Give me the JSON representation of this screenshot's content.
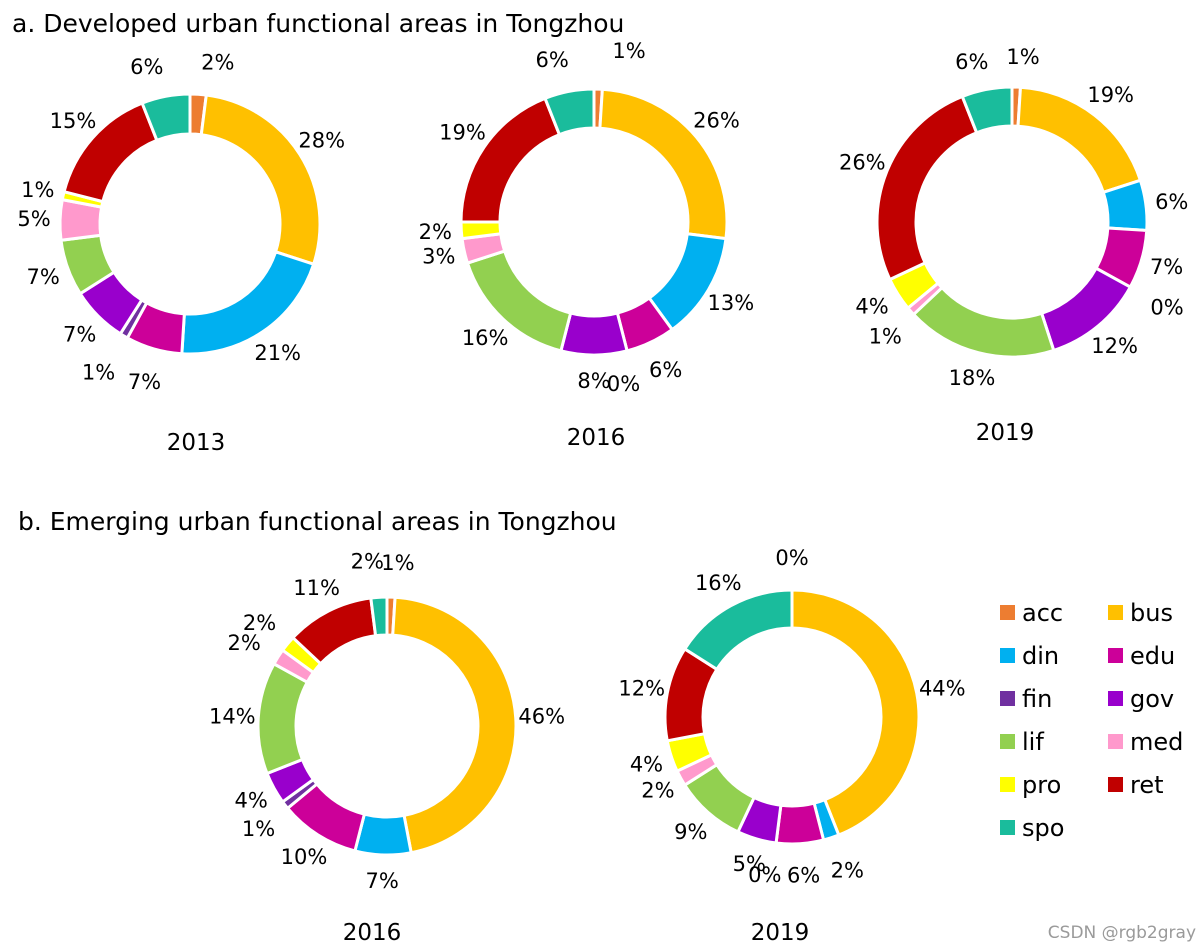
{
  "section_a": {
    "title": "a. Developed urban functional areas in Tongzhou"
  },
  "section_b": {
    "title": "b. Emerging urban functional areas in Tongzhou"
  },
  "watermark": "CSDN @rgb2gray",
  "colors": {
    "acc": "#ED7D31",
    "bus": "#FFC000",
    "din": "#00B0F0",
    "edu": "#CC0099",
    "fin": "#7030A0",
    "gov": "#9900CC",
    "lif": "#92D050",
    "med": "#FF99CC",
    "pro": "#FFFF00",
    "ret": "#C00000",
    "spo": "#1ABC9C"
  },
  "chart_data": [
    {
      "type": "pie",
      "style": "donut",
      "section": "a",
      "title": "2013",
      "categories": [
        "acc",
        "bus",
        "din",
        "edu",
        "fin",
        "gov",
        "lif",
        "med",
        "pro",
        "ret",
        "spo"
      ],
      "values": [
        2,
        28,
        21,
        7,
        1,
        7,
        7,
        5,
        1,
        15,
        6
      ],
      "labels": [
        "2%",
        "28%",
        "21%",
        "7%",
        "1%",
        "7%",
        "7%",
        "5%",
        "1%",
        "15%",
        "6%"
      ]
    },
    {
      "type": "pie",
      "style": "donut",
      "section": "a",
      "title": "2016",
      "categories": [
        "acc",
        "bus",
        "din",
        "edu",
        "fin",
        "gov",
        "lif",
        "med",
        "pro",
        "ret",
        "spo"
      ],
      "values": [
        1,
        26,
        13,
        6,
        0,
        8,
        16,
        3,
        2,
        19,
        6
      ],
      "labels": [
        "1%",
        "26%",
        "13%",
        "6%",
        "0%",
        "8%",
        "16%",
        "3%",
        "2%",
        "19%",
        "6%"
      ]
    },
    {
      "type": "pie",
      "style": "donut",
      "section": "a",
      "title": "2019",
      "categories": [
        "acc",
        "bus",
        "din",
        "edu",
        "fin",
        "gov",
        "lif",
        "med",
        "pro",
        "ret",
        "spo"
      ],
      "values": [
        1,
        19,
        6,
        7,
        0,
        12,
        18,
        1,
        4,
        26,
        6
      ],
      "labels": [
        "1%",
        "19%",
        "6%",
        "7%",
        "0%",
        "12%",
        "18%",
        "1%",
        "4%",
        "26%",
        "6%"
      ]
    },
    {
      "type": "pie",
      "style": "donut",
      "section": "b",
      "title": "2016",
      "categories": [
        "acc",
        "bus",
        "din",
        "edu",
        "fin",
        "gov",
        "lif",
        "med",
        "pro",
        "ret",
        "spo"
      ],
      "values": [
        1,
        46,
        7,
        10,
        1,
        4,
        14,
        2,
        2,
        11,
        2
      ],
      "labels": [
        "1%",
        "46%",
        "7%",
        "10%",
        "1%",
        "4%",
        "14%",
        "2%",
        "2%",
        "11%",
        "2%"
      ]
    },
    {
      "type": "pie",
      "style": "donut",
      "section": "b",
      "title": "2019",
      "categories": [
        "acc",
        "bus",
        "din",
        "edu",
        "fin",
        "gov",
        "lif",
        "med",
        "pro",
        "ret",
        "spo"
      ],
      "values": [
        0,
        44,
        2,
        6,
        0,
        5,
        9,
        2,
        4,
        12,
        16
      ],
      "labels": [
        "0%",
        "44%",
        "2%",
        "6%",
        "0%",
        "5%",
        "9%",
        "2%",
        "4%",
        "12%",
        "16%"
      ]
    }
  ],
  "legend": {
    "position": "right",
    "items": [
      {
        "key": "acc",
        "label": "acc"
      },
      {
        "key": "bus",
        "label": "bus"
      },
      {
        "key": "din",
        "label": "din"
      },
      {
        "key": "edu",
        "label": "edu"
      },
      {
        "key": "fin",
        "label": "fin"
      },
      {
        "key": "gov",
        "label": "gov"
      },
      {
        "key": "lif",
        "label": "lif"
      },
      {
        "key": "med",
        "label": "med"
      },
      {
        "key": "pro",
        "label": "pro"
      },
      {
        "key": "ret",
        "label": "ret"
      },
      {
        "key": "spo",
        "label": "spo"
      }
    ]
  }
}
